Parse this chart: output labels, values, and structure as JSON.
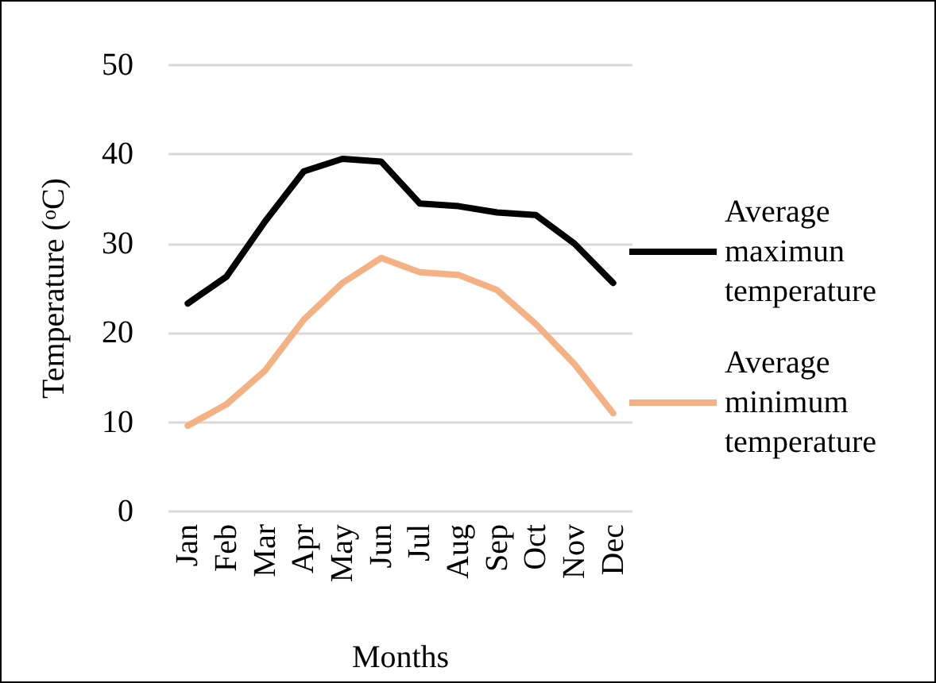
{
  "chart_data": {
    "type": "line",
    "categories": [
      "Jan",
      "Feb",
      "Mar",
      "Apr",
      "May",
      "Jun",
      "Jul",
      "Aug",
      "Sep",
      "Oct",
      "Nov",
      "Dec"
    ],
    "series": [
      {
        "name": "Average maximun temperature",
        "color": "#000000",
        "values": [
          23.3,
          26.3,
          32.5,
          38.1,
          39.5,
          39.2,
          34.5,
          34.2,
          33.5,
          33.2,
          30,
          25.6
        ]
      },
      {
        "name": "Average minimum temperature",
        "color": "#f4b183",
        "values": [
          9.6,
          12,
          15.8,
          21.5,
          25.6,
          28.4,
          26.8,
          26.5,
          24.8,
          21,
          16.5,
          11
        ]
      }
    ],
    "xlabel": "Months",
    "ylabel": "Temperature ($^{o}$C)",
    "ylim": [
      0,
      50
    ],
    "yticks": [
      0,
      10,
      20,
      30,
      40,
      50
    ],
    "grid": "y",
    "legend": "right",
    "marker": "none",
    "line_style": "solid"
  }
}
